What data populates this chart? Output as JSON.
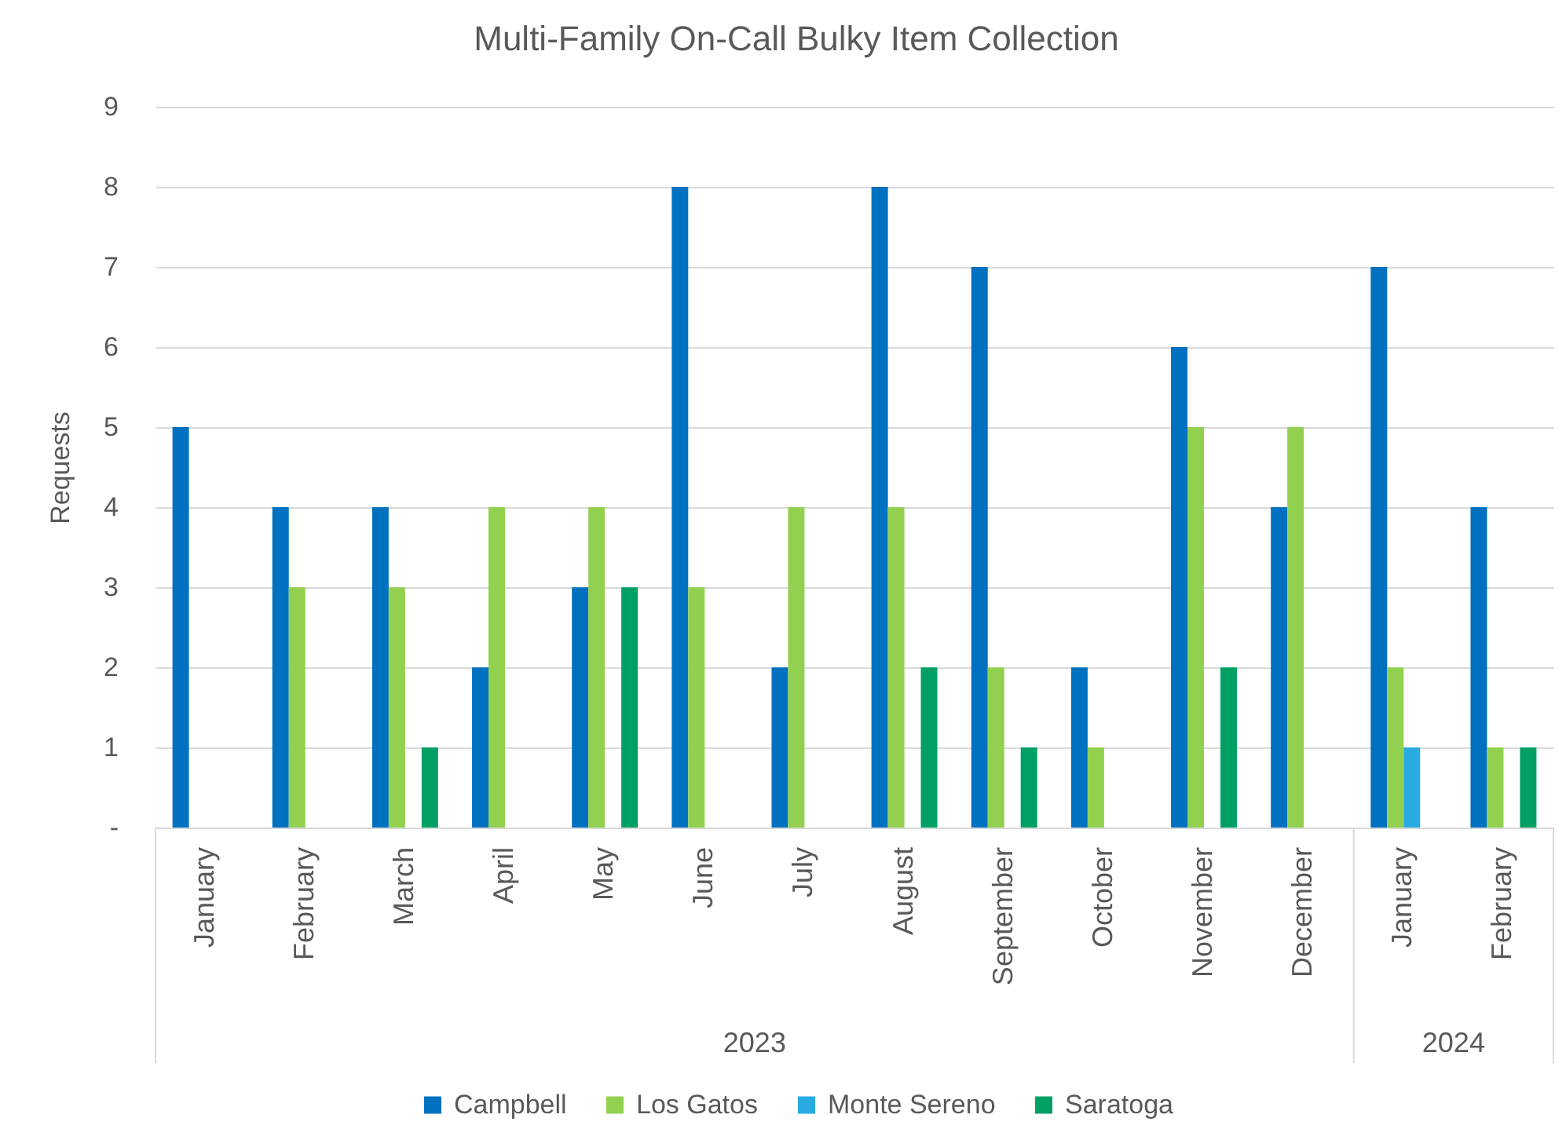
{
  "chart_data": {
    "type": "bar",
    "title": "Multi-Family On-Call Bulky Item Collection",
    "ylabel": "Requests",
    "categories": [
      "January",
      "February",
      "March",
      "April",
      "May",
      "June",
      "July",
      "August",
      "September",
      "October",
      "November",
      "December",
      "January",
      "February"
    ],
    "series": [
      {
        "name": "Campbell",
        "color": "#0070c0",
        "values": [
          5,
          4,
          4,
          2,
          3,
          8,
          2,
          8,
          7,
          2,
          6,
          4,
          7,
          4
        ]
      },
      {
        "name": "Los Gatos",
        "color": "#92d050",
        "values": [
          null,
          3,
          3,
          4,
          4,
          3,
          4,
          4,
          2,
          1,
          5,
          5,
          2,
          1
        ]
      },
      {
        "name": "Monte Sereno",
        "color": "#29abe2",
        "values": [
          null,
          null,
          null,
          null,
          null,
          null,
          null,
          null,
          null,
          null,
          null,
          null,
          1,
          null
        ]
      },
      {
        "name": "Saratoga",
        "color": "#00a064",
        "values": [
          null,
          null,
          1,
          null,
          3,
          null,
          null,
          2,
          1,
          null,
          2,
          null,
          null,
          1
        ]
      }
    ],
    "ylim": [
      0,
      9
    ],
    "yticks": [
      {
        "value": 0,
        "label": "-"
      },
      1,
      2,
      3,
      4,
      5,
      6,
      7,
      8,
      9
    ],
    "grid": "y",
    "legend": "bottom",
    "annotations": [
      "2023",
      "2024"
    ]
  }
}
